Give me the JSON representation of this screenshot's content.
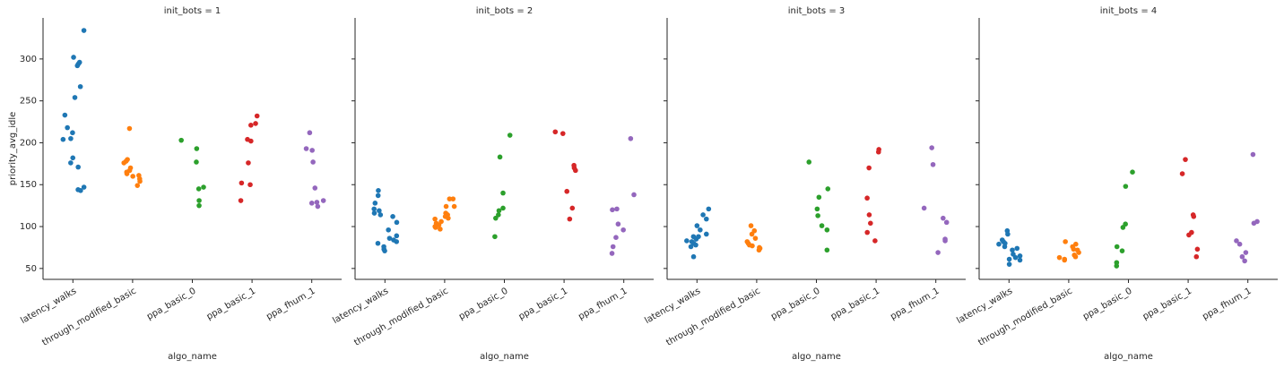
{
  "chart_data": [
    {
      "type": "strip",
      "title": "init_bots = 1",
      "x_label": "algo_name",
      "y_label": "priority_avg_idle",
      "categories": [
        "latency_walks",
        "through_modified_basic",
        "ppa_basic_0",
        "ppa_basic_1",
        "ppa_fhum_1"
      ],
      "colors": [
        "#1f77b4",
        "#ff7f0e",
        "#2ca02c",
        "#d62728",
        "#9467bd"
      ],
      "points": [
        [
          334,
          302,
          296,
          292,
          294,
          267,
          254,
          233,
          218,
          212,
          205,
          204,
          182,
          176,
          171,
          147,
          144,
          143
        ],
        [
          217,
          180,
          178,
          176,
          170,
          167,
          165,
          163,
          161,
          160,
          157,
          154,
          149
        ],
        [
          203,
          193,
          177,
          147,
          145,
          131,
          125
        ],
        [
          232,
          223,
          221,
          204,
          202,
          176,
          152,
          150,
          131
        ],
        [
          212,
          193,
          191,
          177,
          146,
          131,
          129,
          128,
          124
        ]
      ],
      "ylim": [
        37,
        349
      ],
      "yticks": [
        50,
        100,
        150,
        200,
        250,
        300
      ]
    },
    {
      "type": "strip",
      "title": "init_bots = 2",
      "x_label": "algo_name",
      "categories": [
        "latency_walks",
        "through_modified_basic",
        "ppa_basic_0",
        "ppa_basic_1",
        "ppa_fhum_1"
      ],
      "colors": [
        "#1f77b4",
        "#ff7f0e",
        "#2ca02c",
        "#d62728",
        "#9467bd"
      ],
      "points": [
        [
          143,
          137,
          128,
          121,
          119,
          116,
          114,
          112,
          105,
          96,
          89,
          86,
          84,
          82,
          80,
          76,
          73,
          71
        ],
        [
          133,
          133,
          124,
          124,
          116,
          114,
          112,
          110,
          109,
          106,
          104,
          102,
          100,
          99,
          97
        ],
        [
          209,
          183,
          140,
          122,
          119,
          114,
          110,
          88
        ],
        [
          213,
          211,
          173,
          170,
          167,
          142,
          122,
          109
        ],
        [
          205,
          138,
          121,
          120,
          103,
          96,
          87,
          76,
          68
        ]
      ],
      "ylim": [
        37,
        349
      ],
      "yticks": [
        50,
        100,
        150,
        200,
        250,
        300
      ]
    },
    {
      "type": "strip",
      "title": "init_bots = 3",
      "x_label": "algo_name",
      "categories": [
        "latency_walks",
        "through_modified_basic",
        "ppa_basic_0",
        "ppa_basic_1",
        "ppa_fhum_1"
      ],
      "colors": [
        "#1f77b4",
        "#ff7f0e",
        "#2ca02c",
        "#d62728",
        "#9467bd"
      ],
      "points": [
        [
          121,
          114,
          109,
          101,
          96,
          91,
          88,
          88,
          85,
          83,
          82,
          80,
          78,
          76,
          64
        ],
        [
          101,
          95,
          91,
          86,
          82,
          80,
          78,
          77,
          75,
          74,
          72
        ],
        [
          177,
          145,
          135,
          121,
          113,
          101,
          96,
          72
        ],
        [
          192,
          189,
          170,
          134,
          114,
          104,
          93,
          83
        ],
        [
          194,
          174,
          122,
          110,
          105,
          85,
          83,
          69
        ]
      ],
      "ylim": [
        37,
        349
      ],
      "yticks": [
        50,
        100,
        150,
        200,
        250,
        300
      ]
    },
    {
      "type": "strip",
      "title": "init_bots = 4",
      "x_label": "algo_name",
      "categories": [
        "latency_walks",
        "through_modified_basic",
        "ppa_basic_0",
        "ppa_basic_1",
        "ppa_fhum_1"
      ],
      "colors": [
        "#1f77b4",
        "#ff7f0e",
        "#2ca02c",
        "#d62728",
        "#9467bd"
      ],
      "points": [
        [
          95,
          91,
          84,
          82,
          80,
          79,
          76,
          74,
          72,
          67,
          65,
          63,
          61,
          60,
          55
        ],
        [
          82,
          79,
          76,
          73,
          72,
          69,
          66,
          64,
          63,
          61,
          60
        ],
        [
          165,
          148,
          103,
          99,
          76,
          71,
          57,
          53
        ],
        [
          180,
          163,
          114,
          112,
          93,
          90,
          73,
          64
        ],
        [
          186,
          106,
          104,
          83,
          79,
          69,
          64,
          59
        ]
      ],
      "ylim": [
        37,
        349
      ],
      "yticks": [
        50,
        100,
        150,
        200,
        250,
        300
      ]
    }
  ]
}
